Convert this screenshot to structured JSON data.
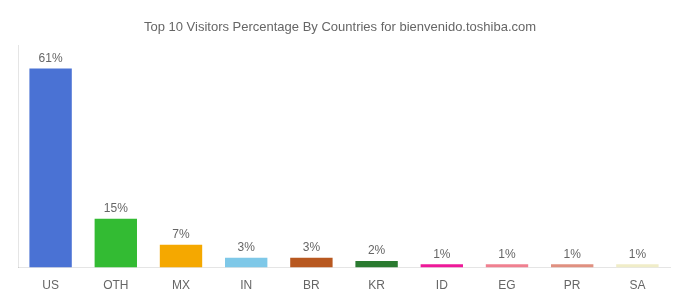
{
  "chart_data": {
    "type": "bar",
    "title": "Top 10 Visitors Percentage By Countries for bienvenido.toshiba.com",
    "categories": [
      "US",
      "OTH",
      "MX",
      "IN",
      "BR",
      "KR",
      "ID",
      "EG",
      "PR",
      "SA"
    ],
    "values": [
      61,
      15,
      7,
      3,
      3,
      2,
      1,
      1,
      1,
      1
    ],
    "value_labels": [
      "61%",
      "15%",
      "7%",
      "3%",
      "3%",
      "2%",
      "1%",
      "1%",
      "1%",
      "1%"
    ],
    "colors": [
      "#4a72d4",
      "#33bb33",
      "#f5a800",
      "#7ec8e8",
      "#b85820",
      "#2a7a30",
      "#ee1899",
      "#f08090",
      "#e09080",
      "#f0edc8"
    ],
    "ylim": [
      0,
      68
    ],
    "grid": false,
    "data_labels": true,
    "tick_labels": "x"
  }
}
